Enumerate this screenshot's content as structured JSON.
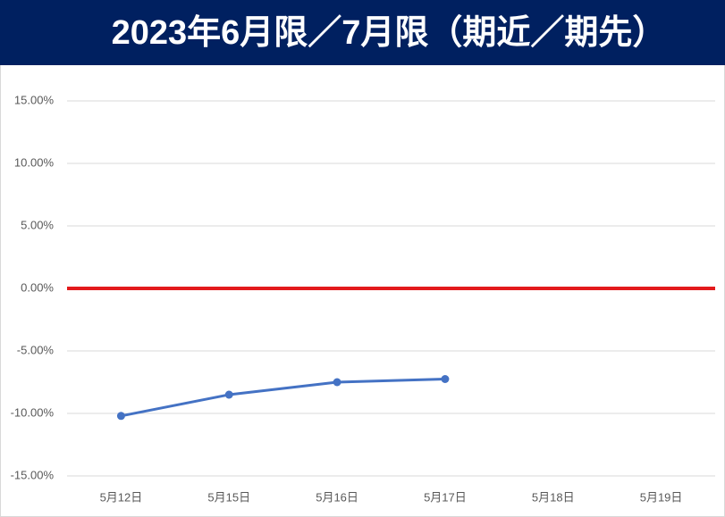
{
  "chart_data": {
    "type": "line",
    "title": "2023年6月限／7月限（期近／期先）",
    "categories": [
      "5月12日",
      "5月15日",
      "5月16日",
      "5月17日",
      "5月18日",
      "5月19日"
    ],
    "values": [
      -10.2,
      -8.5,
      -7.5,
      -7.25,
      null,
      null
    ],
    "color": "#4472c4",
    "ylim": [
      -15,
      15
    ],
    "yticks": [
      {
        "value": -15,
        "label": "-15.00%"
      },
      {
        "value": -10,
        "label": "-10.00%"
      },
      {
        "value": -5,
        "label": "-5.00%"
      },
      {
        "value": 0,
        "label": "0.00%"
      },
      {
        "value": 5,
        "label": "5.00%"
      },
      {
        "value": 10,
        "label": "10.00%"
      },
      {
        "value": 15,
        "label": "15.00%"
      }
    ],
    "grid": true,
    "reference_line": {
      "value": 0,
      "color": "#e31a1c"
    }
  }
}
